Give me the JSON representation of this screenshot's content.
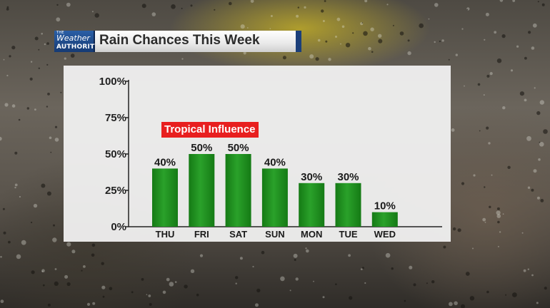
{
  "header": {
    "logo": {
      "line1": "THE",
      "line2": "Weather",
      "line3": "AUTHORITY"
    },
    "title": "Rain Chances This Week"
  },
  "annotation": "Tropical Influence",
  "colors": {
    "bar": "#2aa12a",
    "bar_dark": "#157a15",
    "annotation": "#e81f1f",
    "header_blue": "#1b3f7a"
  },
  "chart_data": {
    "type": "bar",
    "title": "Rain Chances This Week",
    "categories": [
      "THU",
      "FRI",
      "SAT",
      "SUN",
      "MON",
      "TUE",
      "WED"
    ],
    "values": [
      40,
      50,
      50,
      40,
      30,
      30,
      10
    ],
    "value_labels": [
      "40%",
      "50%",
      "50%",
      "40%",
      "30%",
      "30%",
      "10%"
    ],
    "yticks": [
      0,
      25,
      50,
      75,
      100
    ],
    "ytick_labels": [
      "0%",
      "25%",
      "50%",
      "75%",
      "100%"
    ],
    "ylim": [
      0,
      100
    ],
    "xlabel": "",
    "ylabel": "",
    "grid": false,
    "annotations": [
      "Tropical Influence"
    ]
  }
}
